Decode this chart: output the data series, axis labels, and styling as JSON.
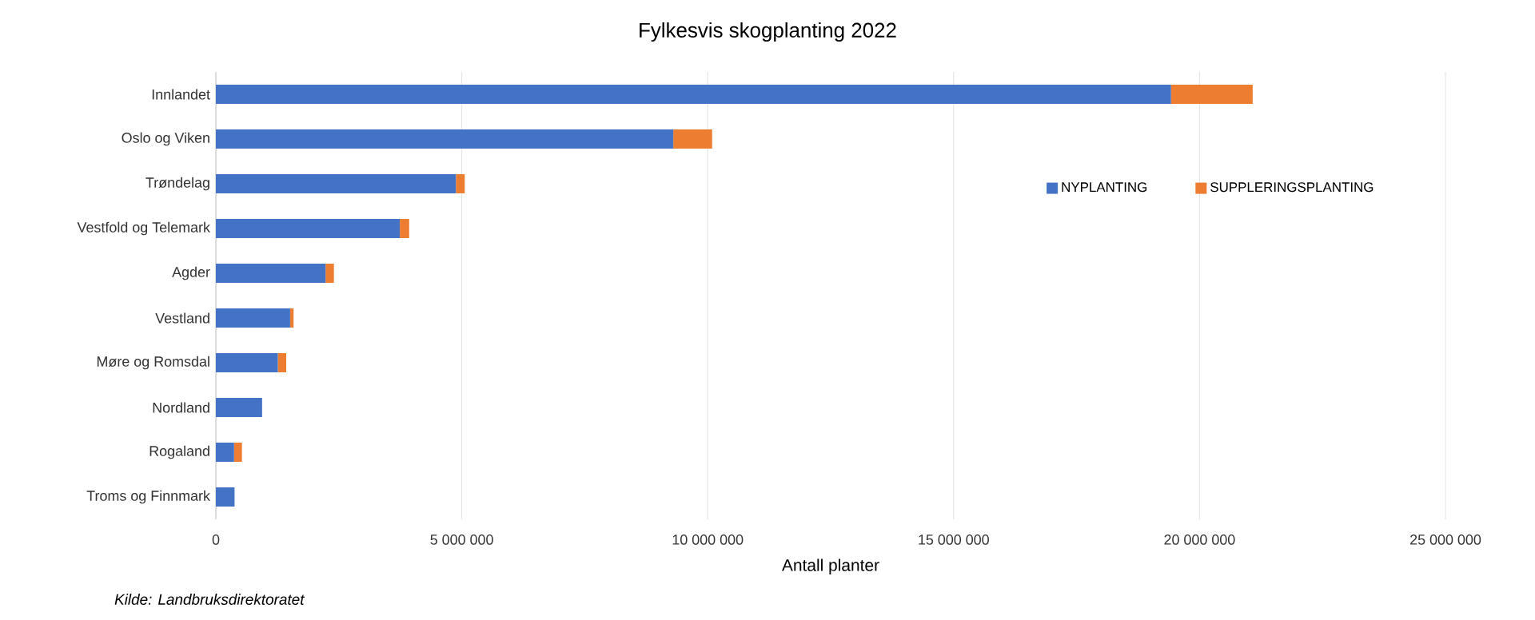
{
  "chart_data": {
    "type": "bar",
    "orientation": "horizontal",
    "stacked": true,
    "title": "Fylkesvis skogplanting 2022",
    "xlabel": "Antall planter",
    "categories": [
      "Innlandet",
      "Oslo og Viken",
      "Trøndelag",
      "Vestfold og Telemark",
      "Agder",
      "Vestland",
      "Møre og Romsdal",
      "Nordland",
      "Rogaland",
      "Troms og Finnmark"
    ],
    "series": [
      {
        "name": "NYPLANTING",
        "color": "#4472c4",
        "values": [
          19420000,
          9300000,
          4880000,
          3740000,
          2230000,
          1510000,
          1260000,
          940000,
          370000,
          380000
        ]
      },
      {
        "name": "SUPPLERINGSPLANTING",
        "color": "#ed7d31",
        "values": [
          1660000,
          790000,
          180000,
          190000,
          170000,
          70000,
          170000,
          0,
          160000,
          0
        ]
      }
    ],
    "xlim": [
      0,
      25000000
    ],
    "xticks": [
      {
        "value": 0,
        "label": "0"
      },
      {
        "value": 5000000,
        "label": "5 000 000"
      },
      {
        "value": 10000000,
        "label": "10 000 000"
      },
      {
        "value": 15000000,
        "label": "15 000 000"
      },
      {
        "value": 20000000,
        "label": "20 000 000"
      },
      {
        "value": 25000000,
        "label": "25 000 000"
      }
    ],
    "grid": "x",
    "legend": "right",
    "annotations": [
      "Kilde: Landbruksdirektoratet"
    ]
  }
}
